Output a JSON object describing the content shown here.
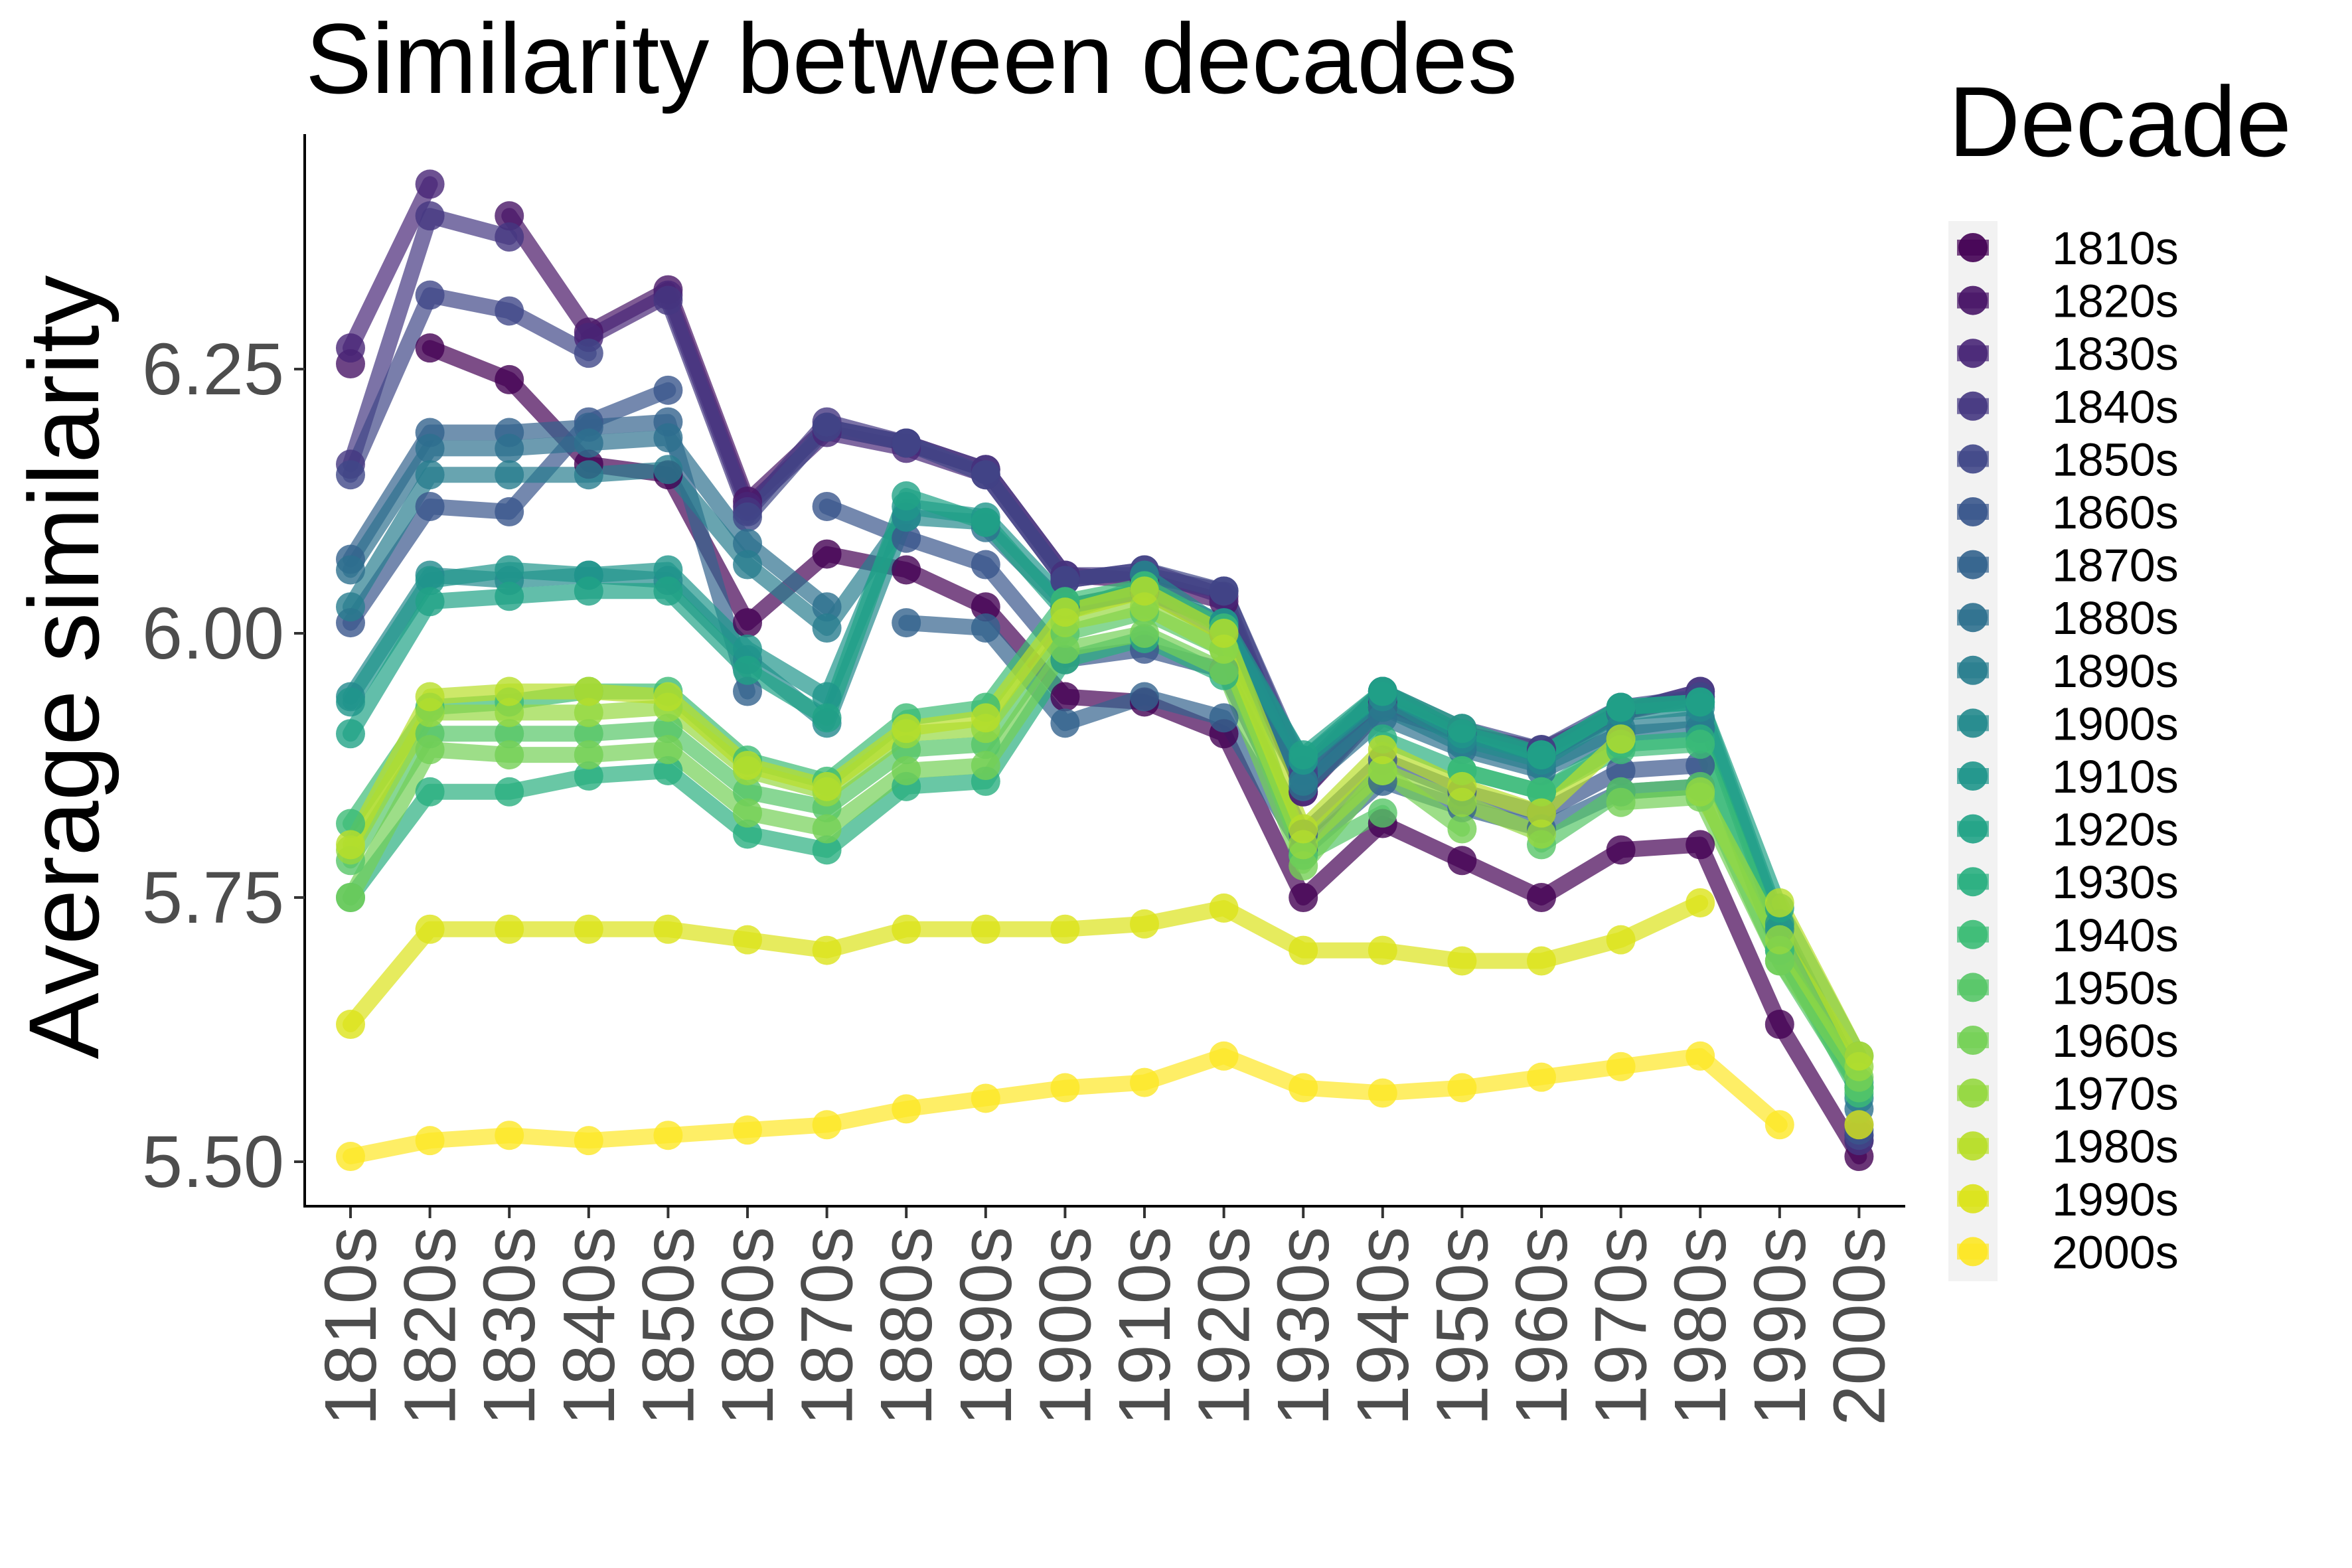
{
  "chart_data": {
    "type": "line",
    "title": "Similarity between decades",
    "xlabel": "",
    "ylabel": "Average similarity",
    "categories": [
      "1810s",
      "1820s",
      "1830s",
      "1840s",
      "1850s",
      "1860s",
      "1870s",
      "1880s",
      "1890s",
      "1900s",
      "1910s",
      "1920s",
      "1930s",
      "1940s",
      "1950s",
      "1960s",
      "1970s",
      "1980s",
      "1990s",
      "2000s"
    ],
    "yticks": [
      "5.50",
      "5.75",
      "6.00",
      "6.25"
    ],
    "ylim": [
      5.46,
      6.47
    ],
    "grid": false,
    "legend": {
      "title": "Decade",
      "position": "right"
    },
    "series": [
      {
        "name": "1810s",
        "color": "#440154",
        "values": [
          null,
          6.27,
          6.24,
          6.16,
          6.15,
          6.01,
          6.075,
          6.06,
          6.025,
          5.94,
          5.935,
          5.905,
          5.75,
          5.82,
          5.785,
          5.75,
          5.795,
          5.8,
          5.63,
          5.505
        ]
      },
      {
        "name": "1820s",
        "color": "#481567",
        "values": [
          6.255,
          null,
          6.395,
          6.285,
          6.325,
          6.125,
          6.195,
          6.18,
          6.155,
          6.055,
          6.05,
          6.03,
          5.85,
          5.93,
          5.905,
          5.89,
          5.925,
          5.94,
          null,
          5.52
        ]
      },
      {
        "name": "1830s",
        "color": "#482677",
        "values": [
          6.27,
          6.425,
          null,
          6.28,
          6.32,
          6.12,
          6.19,
          6.175,
          6.15,
          6.05,
          6.06,
          6.035,
          5.85,
          5.935,
          5.905,
          5.885,
          5.925,
          5.945,
          null,
          5.525
        ]
      },
      {
        "name": "1840s",
        "color": "#453781",
        "values": [
          6.16,
          6.395,
          6.375,
          null,
          6.315,
          6.115,
          6.2,
          6.18,
          6.155,
          6.055,
          6.055,
          6.04,
          5.865,
          5.945,
          5.905,
          5.885,
          5.925,
          5.945,
          null,
          5.52
        ]
      },
      {
        "name": "1850s",
        "color": "#404788",
        "values": [
          6.15,
          6.32,
          6.305,
          6.265,
          null,
          6.11,
          6.195,
          6.18,
          6.15,
          6.05,
          6.06,
          6.04,
          5.87,
          5.945,
          5.91,
          5.89,
          5.93,
          5.94,
          null,
          5.525
        ]
      },
      {
        "name": "1860s",
        "color": "#39568c",
        "values": [
          6.01,
          6.12,
          6.115,
          6.2,
          6.23,
          null,
          6.12,
          6.09,
          6.065,
          5.975,
          5.985,
          5.965,
          5.81,
          5.88,
          5.85,
          5.83,
          5.87,
          5.875,
          null,
          5.53
        ]
      },
      {
        "name": "1870s",
        "color": "#33638d",
        "values": [
          6.07,
          6.19,
          6.19,
          6.195,
          6.2,
          5.945,
          null,
          6.01,
          6.005,
          5.915,
          5.94,
          5.92,
          5.795,
          5.86,
          5.835,
          5.815,
          5.85,
          5.855,
          null,
          5.535
        ]
      },
      {
        "name": "1880s",
        "color": "#2d708e",
        "values": [
          6.06,
          6.175,
          6.175,
          6.18,
          6.185,
          6.085,
          6.025,
          null,
          6.1,
          6.025,
          6.04,
          6.0,
          5.855,
          5.92,
          5.89,
          5.87,
          5.905,
          5.91,
          null,
          5.55
        ]
      },
      {
        "name": "1890s",
        "color": "#287d8e",
        "values": [
          6.025,
          6.15,
          6.15,
          6.15,
          6.155,
          6.065,
          6.005,
          6.11,
          null,
          6.025,
          6.04,
          6.01,
          5.86,
          5.93,
          5.895,
          5.875,
          5.91,
          5.92,
          null,
          5.56
        ]
      },
      {
        "name": "1900s",
        "color": "#238a8d",
        "values": [
          5.94,
          6.055,
          6.05,
          6.055,
          6.05,
          5.975,
          5.915,
          6.11,
          6.105,
          null,
          6.055,
          6.005,
          5.88,
          5.94,
          5.9,
          5.88,
          5.925,
          5.93,
          5.72,
          5.57
        ]
      },
      {
        "name": "1910s",
        "color": "#1f968b",
        "values": [
          5.935,
          6.05,
          6.06,
          6.055,
          6.06,
          5.985,
          5.94,
          6.12,
          6.11,
          6.03,
          null,
          6.01,
          5.88,
          5.945,
          5.905,
          5.885,
          5.93,
          5.935,
          5.725,
          5.575
        ]
      },
      {
        "name": "1920s",
        "color": "#20a386",
        "values": [
          5.905,
          6.03,
          6.035,
          6.04,
          6.04,
          5.965,
          5.92,
          6.13,
          6.105,
          6.02,
          6.045,
          null,
          5.885,
          5.945,
          5.91,
          5.885,
          5.93,
          5.935,
          5.74,
          5.6
        ]
      },
      {
        "name": "1930s",
        "color": "#29af7f",
        "values": [
          5.75,
          5.85,
          5.85,
          5.865,
          5.87,
          5.81,
          5.795,
          5.855,
          5.86,
          5.975,
          5.995,
          5.96,
          null,
          5.9,
          5.87,
          5.85,
          5.895,
          5.9,
          5.7,
          5.57
        ]
      },
      {
        "name": "1940s",
        "color": "#3cbc75",
        "values": [
          5.82,
          5.93,
          5.935,
          5.945,
          5.945,
          5.88,
          5.86,
          5.92,
          5.93,
          6.03,
          6.045,
          6.005,
          5.79,
          null,
          5.87,
          5.85,
          5.89,
          5.895,
          5.7,
          5.565
        ]
      },
      {
        "name": "1950s",
        "color": "#56c667",
        "values": [
          5.785,
          5.905,
          5.905,
          5.905,
          5.91,
          5.85,
          5.835,
          5.89,
          5.895,
          6.0,
          6.02,
          5.985,
          5.79,
          5.83,
          null,
          5.8,
          5.85,
          5.855,
          5.69,
          5.57
        ]
      },
      {
        "name": "1960s",
        "color": "#74d055",
        "values": [
          5.75,
          5.89,
          5.885,
          5.885,
          5.89,
          5.83,
          5.815,
          5.87,
          5.875,
          5.985,
          6.0,
          5.965,
          5.78,
          5.87,
          5.815,
          null,
          5.84,
          5.845,
          5.69,
          5.58
        ]
      },
      {
        "name": "1970s",
        "color": "#95d840",
        "values": [
          5.795,
          5.925,
          5.925,
          5.925,
          5.93,
          5.87,
          5.85,
          5.905,
          5.91,
          6.01,
          6.025,
          5.985,
          5.8,
          5.87,
          5.84,
          5.81,
          null,
          5.85,
          5.71,
          5.59
        ]
      },
      {
        "name": "1980s",
        "color": "#b8de29",
        "values": [
          5.8,
          5.94,
          5.945,
          5.945,
          5.94,
          5.875,
          5.855,
          5.91,
          5.92,
          6.02,
          6.04,
          6.0,
          5.815,
          5.89,
          5.855,
          5.83,
          5.9,
          null,
          5.745,
          5.6
        ]
      },
      {
        "name": "1990s",
        "color": "#dce319",
        "values": [
          5.63,
          5.72,
          5.72,
          5.72,
          5.72,
          5.71,
          5.7,
          5.72,
          5.72,
          5.72,
          5.725,
          5.74,
          5.7,
          5.7,
          5.69,
          5.69,
          5.71,
          5.745,
          null,
          5.535
        ]
      },
      {
        "name": "2000s",
        "color": "#fde725",
        "values": [
          5.505,
          5.52,
          5.525,
          5.52,
          5.525,
          5.53,
          5.535,
          5.55,
          5.56,
          5.57,
          5.575,
          5.6,
          5.57,
          5.565,
          5.57,
          5.58,
          5.59,
          5.6,
          5.535,
          null
        ]
      }
    ]
  }
}
